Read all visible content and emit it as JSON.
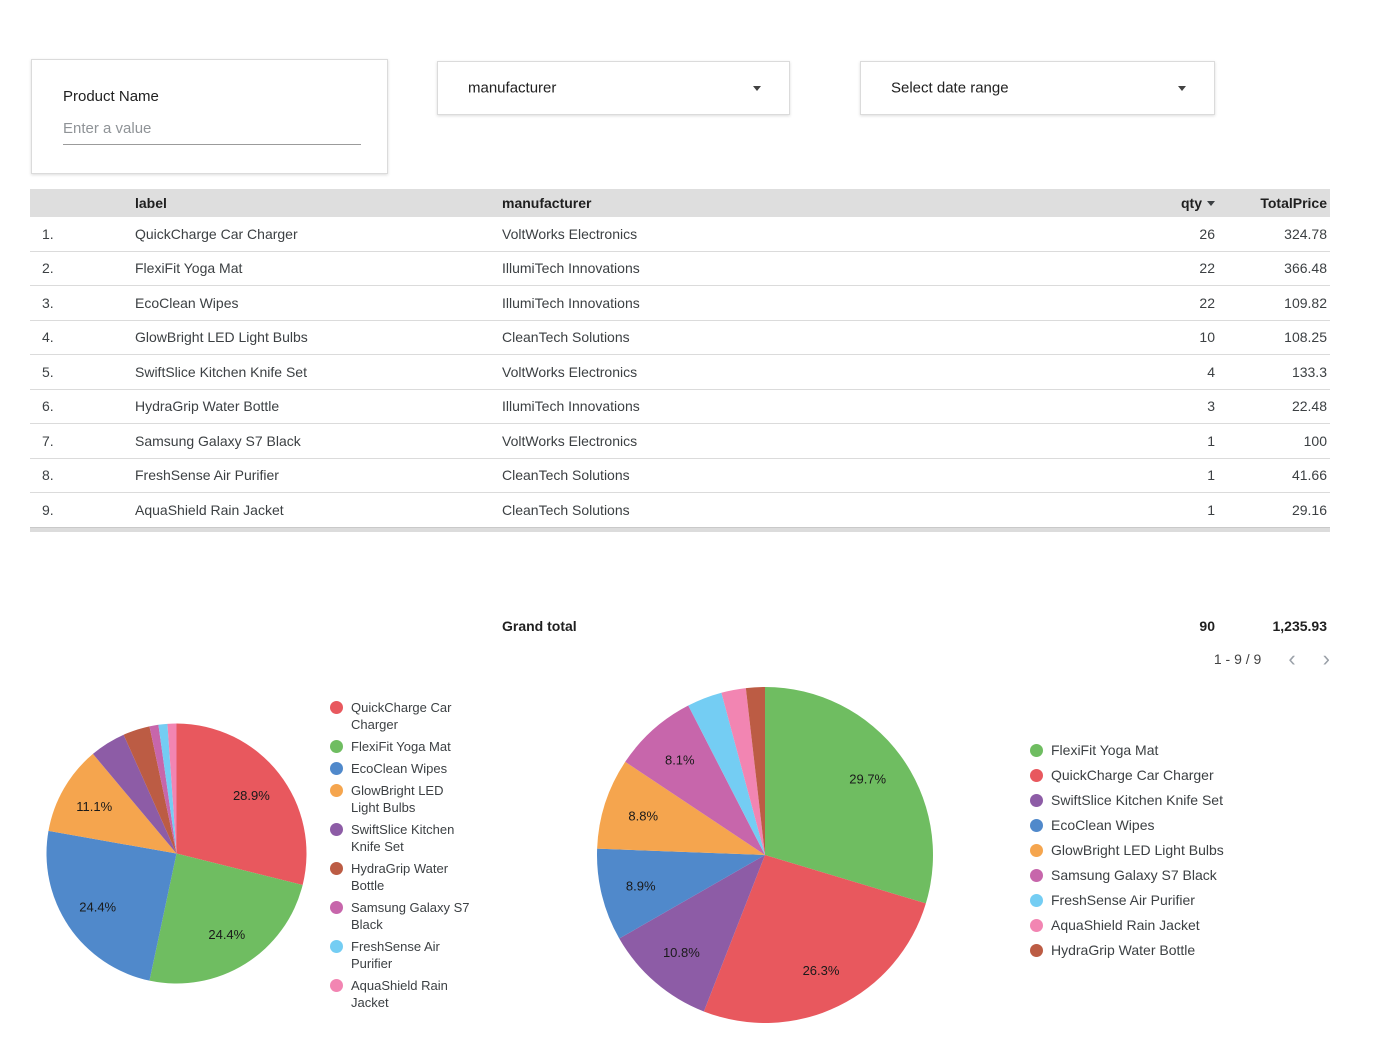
{
  "filters": {
    "product_name": {
      "label": "Product Name",
      "placeholder": "Enter a value"
    },
    "manufacturer": {
      "value": "manufacturer"
    },
    "date_range": {
      "value": "Select date range"
    }
  },
  "icons": {
    "dropdown_arrow": "dropdown-arrow",
    "sort_desc": "sort-desc",
    "prev": "‹",
    "next": "›"
  },
  "table": {
    "columns": [
      "label",
      "manufacturer",
      "qty",
      "TotalPrice"
    ],
    "sort_column": "qty",
    "sort_direction": "desc",
    "rows": [
      {
        "index": "1.",
        "label": "QuickCharge Car Charger",
        "manufacturer": "VoltWorks Electronics",
        "qty": "26",
        "total_price": "324.78"
      },
      {
        "index": "2.",
        "label": "FlexiFit Yoga Mat",
        "manufacturer": "IllumiTech Innovations",
        "qty": "22",
        "total_price": "366.48"
      },
      {
        "index": "3.",
        "label": "EcoClean Wipes",
        "manufacturer": "IllumiTech Innovations",
        "qty": "22",
        "total_price": "109.82"
      },
      {
        "index": "4.",
        "label": "GlowBright LED Light Bulbs",
        "manufacturer": "CleanTech Solutions",
        "qty": "10",
        "total_price": "108.25"
      },
      {
        "index": "5.",
        "label": "SwiftSlice Kitchen Knife Set",
        "manufacturer": "VoltWorks Electronics",
        "qty": "4",
        "total_price": "133.3"
      },
      {
        "index": "6.",
        "label": "HydraGrip Water Bottle",
        "manufacturer": "IllumiTech Innovations",
        "qty": "3",
        "total_price": "22.48"
      },
      {
        "index": "7.",
        "label": "Samsung Galaxy S7 Black",
        "manufacturer": "VoltWorks Electronics",
        "qty": "1",
        "total_price": "100"
      },
      {
        "index": "8.",
        "label": "FreshSense Air Purifier",
        "manufacturer": "CleanTech Solutions",
        "qty": "1",
        "total_price": "41.66"
      },
      {
        "index": "9.",
        "label": "AquaShield Rain Jacket",
        "manufacturer": "CleanTech Solutions",
        "qty": "1",
        "total_price": "29.16"
      }
    ],
    "grand_total": {
      "label": "Grand total",
      "qty": "90",
      "total_price": "1,235.93"
    },
    "pagination": {
      "range": "1 - 9 / 9"
    }
  },
  "colors": {
    "QuickCharge Car Charger": "#E8585E",
    "FlexiFit Yoga Mat": "#6FBD61",
    "EcoClean Wipes": "#5089CB",
    "GlowBright LED Light Bulbs": "#F5A54E",
    "SwiftSlice Kitchen Knife Set": "#8D5CA6",
    "HydraGrip Water Bottle": "#BC5C44",
    "Samsung Galaxy S7 Black": "#C766AB",
    "FreshSense Air Purifier": "#74CDF3",
    "AquaShield Rain Jacket": "#F285B2"
  },
  "chart_data": [
    {
      "type": "pie",
      "title": "",
      "value_field": "qty",
      "total": 90,
      "legend_position": "right",
      "slices": [
        {
          "label": "QuickCharge Car Charger",
          "value": 26,
          "pct_label": "28.9%",
          "color": "#E8585E"
        },
        {
          "label": "FlexiFit Yoga Mat",
          "value": 22,
          "pct_label": "24.4%",
          "color": "#6FBD61"
        },
        {
          "label": "EcoClean Wipes",
          "value": 22,
          "pct_label": "24.4%",
          "color": "#5089CB"
        },
        {
          "label": "GlowBright LED Light Bulbs",
          "value": 10,
          "pct_label": "11.1%",
          "color": "#F5A54E"
        },
        {
          "label": "SwiftSlice Kitchen Knife Set",
          "value": 4,
          "pct_label": null,
          "color": "#8D5CA6"
        },
        {
          "label": "HydraGrip Water Bottle",
          "value": 3,
          "pct_label": null,
          "color": "#BC5C44"
        },
        {
          "label": "Samsung Galaxy S7 Black",
          "value": 1,
          "pct_label": null,
          "color": "#C766AB"
        },
        {
          "label": "FreshSense Air Purifier",
          "value": 1,
          "pct_label": null,
          "color": "#74CDF3"
        },
        {
          "label": "AquaShield Rain Jacket",
          "value": 1,
          "pct_label": null,
          "color": "#F285B2"
        }
      ]
    },
    {
      "type": "pie",
      "title": "",
      "value_field": "TotalPrice",
      "total": 1235.93,
      "legend_position": "right",
      "slices": [
        {
          "label": "FlexiFit Yoga Mat",
          "value": 366.48,
          "pct_label": "29.7%",
          "color": "#6FBD61"
        },
        {
          "label": "QuickCharge Car Charger",
          "value": 324.78,
          "pct_label": "26.3%",
          "color": "#E8585E"
        },
        {
          "label": "SwiftSlice Kitchen Knife Set",
          "value": 133.3,
          "pct_label": "10.8%",
          "color": "#8D5CA6"
        },
        {
          "label": "EcoClean Wipes",
          "value": 109.82,
          "pct_label": "8.9%",
          "color": "#5089CB"
        },
        {
          "label": "GlowBright LED Light Bulbs",
          "value": 108.25,
          "pct_label": "8.8%",
          "color": "#F5A54E"
        },
        {
          "label": "Samsung Galaxy S7 Black",
          "value": 100,
          "pct_label": "8.1%",
          "color": "#C766AB"
        },
        {
          "label": "FreshSense Air Purifier",
          "value": 41.66,
          "pct_label": null,
          "color": "#74CDF3"
        },
        {
          "label": "AquaShield Rain Jacket",
          "value": 29.16,
          "pct_label": null,
          "color": "#F285B2"
        },
        {
          "label": "HydraGrip Water Bottle",
          "value": 22.48,
          "pct_label": null,
          "color": "#BC5C44"
        }
      ]
    }
  ]
}
